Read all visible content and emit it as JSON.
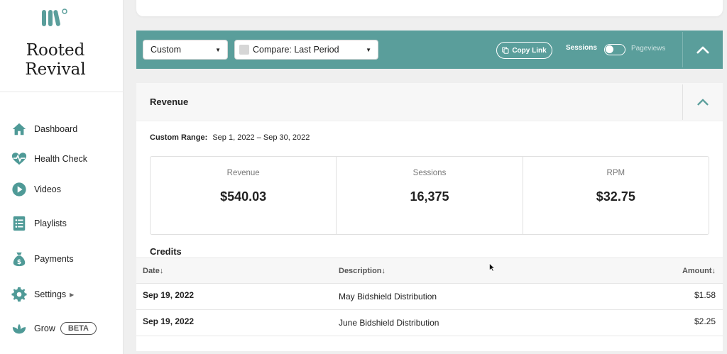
{
  "sidebar": {
    "brand": [
      "Rooted",
      "Revival"
    ],
    "items": [
      {
        "label": "Dashboard",
        "icon": "home-icon"
      },
      {
        "label": "Health Check",
        "icon": "heartbeat-icon"
      },
      {
        "label": "Videos",
        "icon": "play-icon"
      },
      {
        "label": "Playlists",
        "icon": "list-icon"
      },
      {
        "label": "Payments",
        "icon": "money-bag-icon"
      },
      {
        "label": "Settings",
        "icon": "gear-icon"
      },
      {
        "label": "Grow",
        "icon": "leaf-icon",
        "badge": "BETA"
      }
    ]
  },
  "filters": {
    "range_select": "Custom",
    "compare_select": "Compare: Last Period",
    "copy_link": "Copy Link",
    "toggle_left": "Sessions",
    "toggle_right": "Pageviews"
  },
  "revenue": {
    "title": "Revenue",
    "range_label": "Custom Range:",
    "range_value": "Sep 1, 2022 – Sep 30, 2022",
    "stats": [
      {
        "label": "Revenue",
        "value": "$540.03"
      },
      {
        "label": "Sessions",
        "value": "16,375"
      },
      {
        "label": "RPM",
        "value": "$32.75"
      }
    ]
  },
  "credits": {
    "title": "Credits",
    "columns": [
      "Date↓",
      "Description↓",
      "Amount↓"
    ],
    "rows": [
      {
        "date": "Sep 19, 2022",
        "description": "May Bidshield Distribution",
        "amount": "$1.58"
      },
      {
        "date": "Sep 19, 2022",
        "description": "June Bidshield Distribution",
        "amount": "$2.25"
      }
    ]
  },
  "colors": {
    "accent": "#5a9e9b",
    "icon": "#4f9a97"
  }
}
